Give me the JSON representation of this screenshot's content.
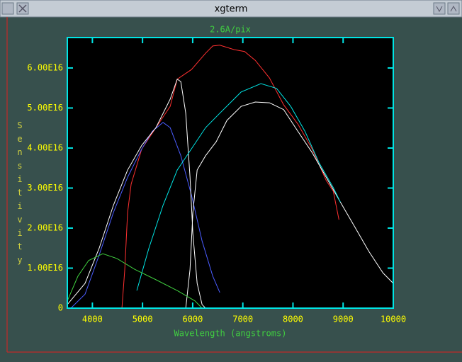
{
  "window": {
    "title": "xgterm"
  },
  "chart_data": {
    "type": "line",
    "title": "2.6A/pix",
    "x_label": "Wavelength (angstroms)",
    "y_label": "Sensitivity",
    "xlim": [
      3500,
      10000
    ],
    "ylim": [
      0,
      6.76e+16
    ],
    "xticks": [
      4000,
      5000,
      6000,
      7000,
      8000,
      9000,
      10000
    ],
    "yticks": [
      0,
      {
        "value": 1e+16,
        "label": "1.00E16"
      },
      {
        "value": 2e+16,
        "label": "2.00E16"
      },
      {
        "value": 3e+16,
        "label": "3.00E16"
      },
      {
        "value": 4e+16,
        "label": "4.00E16"
      },
      {
        "value": 5e+16,
        "label": "5.00E16"
      },
      {
        "value": 6e+16,
        "label": "6.00E16"
      }
    ],
    "series": [
      {
        "color": "#ff3030",
        "x": [
          4589,
          4646,
          4702,
          4773,
          4985,
          5268,
          5551,
          5692,
          5975,
          6258,
          6400,
          6541,
          6824,
          7036,
          7248,
          7531,
          7814,
          8097,
          8380,
          8663,
          8804,
          8917
        ],
        "values": [
          0,
          9700000000000000.0,
          2.39e+16,
          3.1e+16,
          3.98e+16,
          4.51e+16,
          5.04e+16,
          5.72e+16,
          5.96e+16,
          6.37e+16,
          6.55e+16,
          6.57e+16,
          6.46e+16,
          6.41e+16,
          6.19e+16,
          5.75e+16,
          5.08e+16,
          4.6e+16,
          3.98e+16,
          3.19e+16,
          2.92e+16,
          2.21e+16
        ]
      },
      {
        "color": "#4a5cff",
        "x": [
          3571,
          3854,
          4136,
          4419,
          4702,
          4985,
          5197,
          5409,
          5551,
          5763,
          5975,
          6187,
          6400,
          6541
        ],
        "values": [
          0,
          3500000000000000.0,
          1.33e+16,
          2.39e+16,
          3.27e+16,
          3.98e+16,
          4.42e+16,
          4.64e+16,
          4.51e+16,
          3.81e+16,
          2.83e+16,
          1.68e+16,
          8000000000000000.0,
          3900000000000000.0
        ]
      },
      {
        "color": "#ffffff",
        "x": [
          3500,
          3854,
          4136,
          4419,
          4702,
          4985,
          5268,
          5551,
          5692,
          5763,
          5862,
          5947,
          6004,
          6089,
          6187,
          6258
        ],
        "values": [
          900000000000000.0,
          6200000000000000.0,
          1.5e+16,
          2.57e+16,
          3.45e+16,
          4.07e+16,
          4.51e+16,
          5.22e+16,
          5.72e+16,
          5.66e+16,
          4.87e+16,
          3.27e+16,
          1.86e+16,
          6200000000000000.0,
          900000000000000.0,
          0
        ]
      },
      {
        "color": "#ffffff",
        "x": [
          5862,
          5947,
          6004,
          6089,
          6258,
          6470,
          6683,
          6966,
          7248,
          7531,
          7814,
          8097,
          8380,
          8663,
          8945,
          9228,
          9512,
          9795,
          10000
        ],
        "values": [
          0,
          9700000000000000.0,
          2.39e+16,
          3.45e+16,
          3.81e+16,
          4.16e+16,
          4.69e+16,
          5.04e+16,
          5.15e+16,
          5.13e+16,
          4.96e+16,
          4.42e+16,
          3.89e+16,
          3.27e+16,
          2.65e+16,
          2.04e+16,
          1.42e+16,
          8800000000000000.0,
          6200000000000000.0
        ]
      },
      {
        "color": "#00e5e5",
        "x": [
          4886,
          5127,
          5409,
          5692,
          5975,
          6258,
          6541,
          6966,
          7361,
          7673,
          7956,
          8238,
          8521,
          8804,
          8945
        ],
        "values": [
          4400000000000000.0,
          1.5e+16,
          2.57e+16,
          3.45e+16,
          3.98e+16,
          4.51e+16,
          4.87e+16,
          5.4e+16,
          5.61e+16,
          5.49e+16,
          5.04e+16,
          4.42e+16,
          3.63e+16,
          3.01e+16,
          2.65e+16
        ]
      },
      {
        "color": "#40d040",
        "x": [
          3500,
          3712,
          3925,
          4208,
          4490,
          4844,
          5268,
          5692,
          6046,
          6187
        ],
        "values": [
          1800000000000000.0,
          8000000000000000.0,
          1.19e+16,
          1.36e+16,
          1.24e+16,
          9700000000000000.0,
          7100000000000000.0,
          4400000000000000.0,
          1800000000000000.0,
          0
        ]
      }
    ]
  }
}
